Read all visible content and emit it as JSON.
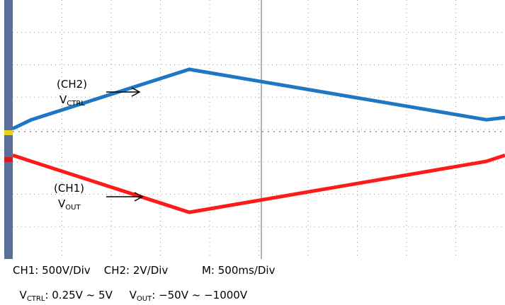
{
  "chart_data": {
    "type": "line",
    "xlabel": "",
    "ylabel": "",
    "grid": true,
    "series": [
      {
        "name": "CH2 VCTRL",
        "color": "#1f77c4",
        "points": [
          [
            0.0,
            1.0
          ],
          [
            0.1,
            1.6
          ],
          [
            0.95,
            5.0
          ],
          [
            2.55,
            1.6
          ],
          [
            2.65,
            1.75
          ]
        ]
      },
      {
        "name": "CH1 VOUT",
        "color": "#ff1a1a",
        "points": [
          [
            0.0,
            -1200
          ],
          [
            0.1,
            -1050
          ],
          [
            0.95,
            200
          ],
          [
            2.55,
            -1050
          ],
          [
            2.65,
            -1200
          ]
        ]
      }
    ],
    "annotations": [
      {
        "channel": "(CH2)",
        "signal": "V",
        "subscript": "CTRL"
      },
      {
        "channel": "(CH1)",
        "signal": "V",
        "subscript": "OUT"
      }
    ]
  },
  "footer": {
    "line1": "CH1: 500V/Div    CH2: 2V/Div          M: 500ms/Div",
    "vctrl_v": "V",
    "vctrl_sub": "CTRL",
    "vctrl_range": ": 0.25V ~ 5V",
    "vout_v": "V",
    "vout_sub": "OUT",
    "vout_range": ": −50V ~ −1000V"
  }
}
